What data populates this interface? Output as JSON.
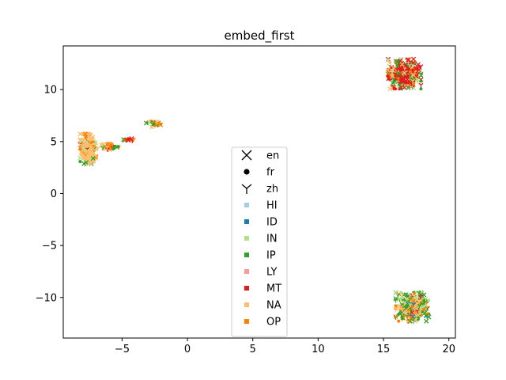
{
  "chart_data": {
    "type": "scatter",
    "title": "embed_first",
    "xlabel": "",
    "ylabel": "",
    "xlim": [
      -9.5,
      20.5
    ],
    "ylim": [
      -13.9,
      14.2
    ],
    "xticks": [
      -5,
      0,
      5,
      10,
      15,
      20
    ],
    "xtick_labels": [
      "−5",
      "0",
      "5",
      "10",
      "15",
      "20"
    ],
    "yticks": [
      -10,
      -5,
      0,
      5,
      10
    ],
    "ytick_labels": [
      "−10",
      "−5",
      "0",
      "5",
      "10"
    ],
    "grid": false,
    "legend": {
      "placement": "lower-center",
      "markers": [
        {
          "label": "en",
          "shape": "x"
        },
        {
          "label": "fr",
          "shape": "circle"
        },
        {
          "label": "zh",
          "shape": "tri-down"
        }
      ],
      "categories": [
        {
          "label": "HI",
          "color": "#a6cee3"
        },
        {
          "label": "ID",
          "color": "#1f78b4"
        },
        {
          "label": "IN",
          "color": "#b2df8a"
        },
        {
          "label": "IP",
          "color": "#33a02c"
        },
        {
          "label": "LY",
          "color": "#fb9a99"
        },
        {
          "label": "MT",
          "color": "#e31a1c"
        },
        {
          "label": "NA",
          "color": "#fdbf6f"
        },
        {
          "label": "OP",
          "color": "#ff7f00"
        }
      ]
    },
    "clusters": [
      {
        "name": "left-main",
        "cx": -7.6,
        "cy": 4.3,
        "rx": 0.55,
        "ry": 1.3,
        "n": 200,
        "mix": {
          "NA": 0.72,
          "IN": 0.08,
          "IP": 0.08,
          "OP": 0.08,
          "MT": 0.04
        }
      },
      {
        "name": "left-tail",
        "cx": -6.1,
        "cy": 4.5,
        "rx": 0.75,
        "ry": 0.28,
        "n": 40,
        "mix": {
          "NA": 0.45,
          "IP": 0.25,
          "OP": 0.15,
          "MT": 0.15
        }
      },
      {
        "name": "left-small",
        "cx": -4.5,
        "cy": 5.2,
        "rx": 0.45,
        "ry": 0.13,
        "n": 16,
        "mix": {
          "MT": 0.45,
          "IP": 0.3,
          "OP": 0.25
        }
      },
      {
        "name": "left-top",
        "cx": -2.6,
        "cy": 6.7,
        "rx": 0.5,
        "ry": 0.28,
        "n": 26,
        "mix": {
          "OP": 0.55,
          "IP": 0.25,
          "NA": 0.2
        }
      },
      {
        "name": "top-right",
        "cx": 16.6,
        "cy": 11.5,
        "rx": 1.15,
        "ry": 1.3,
        "n": 320,
        "mix": {
          "MT": 0.55,
          "IP": 0.14,
          "IN": 0.12,
          "NA": 0.12,
          "OP": 0.07
        }
      },
      {
        "name": "bottom-right",
        "cx": 17.2,
        "cy": -10.9,
        "rx": 1.15,
        "ry": 1.25,
        "n": 280,
        "mix": {
          "IP": 0.32,
          "NA": 0.25,
          "OP": 0.2,
          "IN": 0.15,
          "ID": 0.04,
          "MT": 0.04
        }
      }
    ]
  }
}
